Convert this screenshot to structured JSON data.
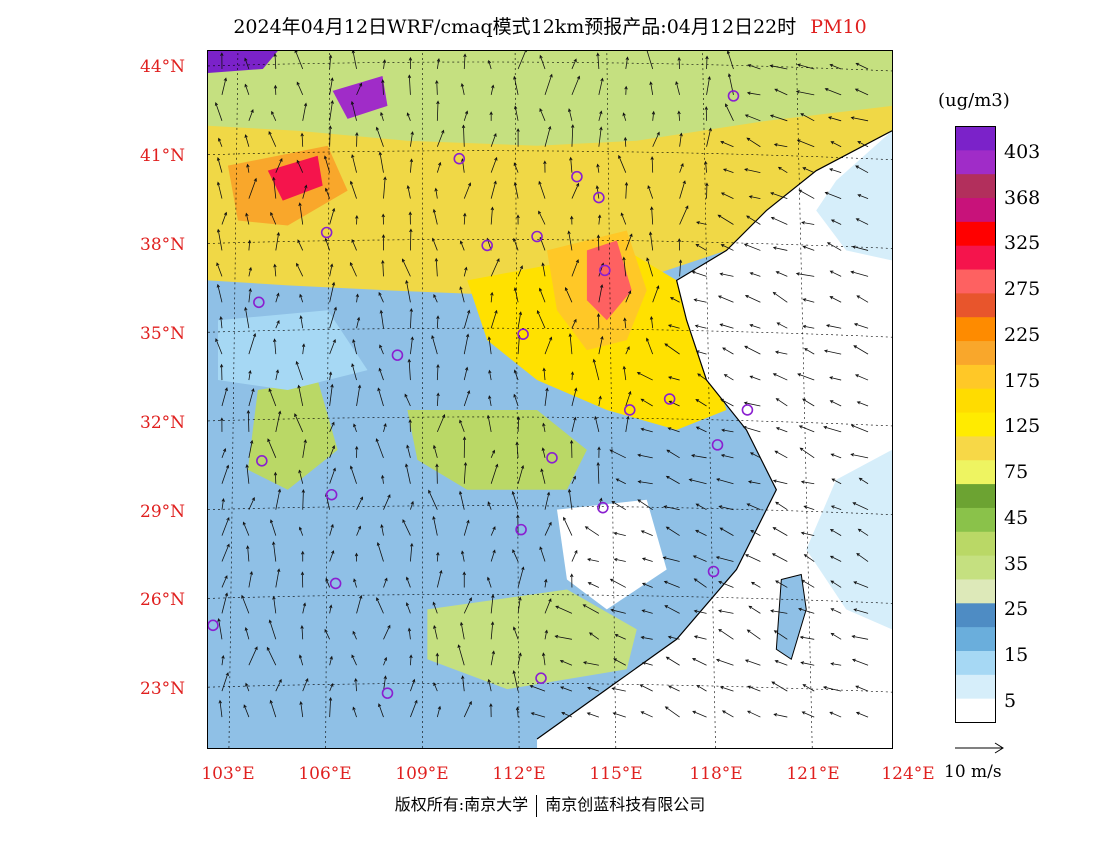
{
  "title": "2024年04月12日WRF/cmaq模式12km预报产品:04月12日22时",
  "variable": "PM10",
  "lat_labels": [
    "44°N",
    "41°N",
    "38°N",
    "35°N",
    "32°N",
    "29°N",
    "26°N",
    "23°N"
  ],
  "lon_labels": [
    "103°E",
    "106°E",
    "109°E",
    "112°E",
    "115°E",
    "118°E",
    "121°E",
    "124°E"
  ],
  "units": "(ug/m3)",
  "colorbar": {
    "labels": [
      "403",
      "368",
      "325",
      "275",
      "225",
      "175",
      "125",
      "75",
      "45",
      "35",
      "25",
      "15",
      "5"
    ],
    "colors": [
      "#7b22c9",
      "#a02cc8",
      "#b22f5c",
      "#c8127a",
      "#ff0000",
      "#f5144c",
      "#fe6161",
      "#e8552c",
      "#fe8b00",
      "#f9a72b",
      "#ffc827",
      "#ffdc00",
      "#ffeb00",
      "#f7d847",
      "#eef461",
      "#6ca332",
      "#8ac24a",
      "#bad866",
      "#c5e080",
      "#dde9b9",
      "#4e8cc4",
      "#6aaedc",
      "#a6d8f4",
      "#d6eefa",
      "#ffffff"
    ]
  },
  "wind_reference": "10 m/s",
  "copyright": {
    "left": "版权所有:南京大学",
    "right": "南京创蓝科技有限公司"
  },
  "map_colors": {
    "land_background": "#8fc0e6",
    "sea": "#ffffff",
    "border": "#000000"
  }
}
